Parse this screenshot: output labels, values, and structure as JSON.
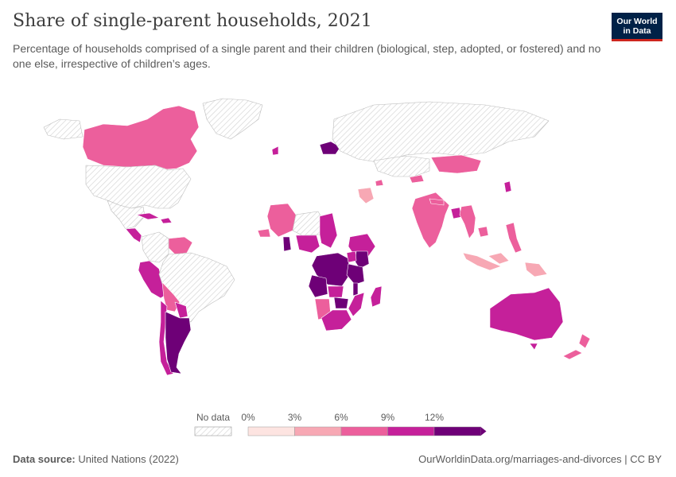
{
  "header": {
    "title": "Share of single-parent households, 2021",
    "subtitle": "Percentage of households comprised of a single parent and their children (biological, step, adopted, or fostered) and no one else, irrespective of children’s ages."
  },
  "logo": {
    "line1": "Our World",
    "line2": "in Data"
  },
  "legend": {
    "no_data_label": "No data",
    "bins": [
      {
        "label": "0%",
        "color": "#fde4e1"
      },
      {
        "label": "3%",
        "color": "#f7a8b4"
      },
      {
        "label": "6%",
        "color": "#ec5f9c"
      },
      {
        "label": "9%",
        "color": "#c5209a"
      },
      {
        "label": "12%",
        "color": "#6e0077"
      }
    ]
  },
  "footer": {
    "source_label": "Data source:",
    "source_text": "United Nations (2022)",
    "url": "OurWorldinData.org/marriages-and-divorces | CC BY"
  },
  "map_regions": [
    {
      "name": "Canada",
      "color": "#ec5f9c"
    },
    {
      "name": "United States",
      "color": "no-data"
    },
    {
      "name": "Mexico",
      "color": "no-data"
    },
    {
      "name": "Cuba",
      "color": "#c5209a"
    },
    {
      "name": "Dominican Republic",
      "color": "#c5209a"
    },
    {
      "name": "Central America",
      "color": "#c5209a"
    },
    {
      "name": "Venezuela",
      "color": "#ec5f9c"
    },
    {
      "name": "Colombia",
      "color": "no-data"
    },
    {
      "name": "Peru",
      "color": "#c5209a"
    },
    {
      "name": "Brazil",
      "color": "no-data"
    },
    {
      "name": "Bolivia",
      "color": "#ec5f9c"
    },
    {
      "name": "Paraguay",
      "color": "#c5209a"
    },
    {
      "name": "Chile",
      "color": "#c5209a"
    },
    {
      "name": "Argentina",
      "color": "#6e0077"
    },
    {
      "name": "Greenland",
      "color": "no-data"
    },
    {
      "name": "Ireland",
      "color": "#c5209a"
    },
    {
      "name": "Belarus",
      "color": "#6e0077"
    },
    {
      "name": "Russia",
      "color": "no-data"
    },
    {
      "name": "Mongolia",
      "color": "#ec5f9c"
    },
    {
      "name": "Kazakhstan",
      "color": "no-data"
    },
    {
      "name": "Kyrgyzstan",
      "color": "#ec5f9c"
    },
    {
      "name": "Armenia",
      "color": "#ec5f9c"
    },
    {
      "name": "Iraq",
      "color": "#f7a8b4"
    },
    {
      "name": "India",
      "color": "#ec5f9c"
    },
    {
      "name": "Nepal",
      "color": "#ec5f9c"
    },
    {
      "name": "Bangladesh",
      "color": "#c5209a"
    },
    {
      "name": "Myanmar",
      "color": "#ec5f9c"
    },
    {
      "name": "Cambodia",
      "color": "#ec5f9c"
    },
    {
      "name": "South Korea",
      "color": "#c5209a"
    },
    {
      "name": "Philippines",
      "color": "#ec5f9c"
    },
    {
      "name": "Indonesia",
      "color": "#f7a8b4"
    },
    {
      "name": "Papua New Guinea",
      "color": "#f7a8b4"
    },
    {
      "name": "Mali",
      "color": "#ec5f9c"
    },
    {
      "name": "Senegal",
      "color": "#ec5f9c"
    },
    {
      "name": "Niger",
      "color": "no-data"
    },
    {
      "name": "Chad",
      "color": "#c5209a"
    },
    {
      "name": "Nigeria",
      "color": "#c5209a"
    },
    {
      "name": "Ghana",
      "color": "#6e0077"
    },
    {
      "name": "Ethiopia",
      "color": "#c5209a"
    },
    {
      "name": "DR Congo",
      "color": "#6e0077"
    },
    {
      "name": "Kenya",
      "color": "#6e0077"
    },
    {
      "name": "Uganda",
      "color": "#c5209a"
    },
    {
      "name": "Tanzania",
      "color": "#6e0077"
    },
    {
      "name": "Angola",
      "color": "#6e0077"
    },
    {
      "name": "Zambia",
      "color": "#c5209a"
    },
    {
      "name": "Malawi",
      "color": "#6e0077"
    },
    {
      "name": "Mozambique",
      "color": "#c5209a"
    },
    {
      "name": "Zimbabwe",
      "color": "#6e0077"
    },
    {
      "name": "Namibia",
      "color": "#ec5f9c"
    },
    {
      "name": "South Africa",
      "color": "#c5209a"
    },
    {
      "name": "Madagascar",
      "color": "#c5209a"
    },
    {
      "name": "Australia",
      "color": "#c5209a"
    },
    {
      "name": "New Zealand",
      "color": "#ec5f9c"
    }
  ]
}
